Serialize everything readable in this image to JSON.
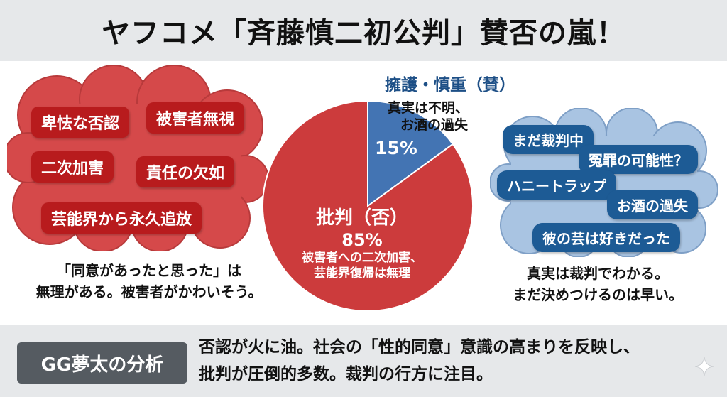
{
  "header": {
    "title": "ヤフコメ「斉藤慎二初公判」賛否の嵐！"
  },
  "oppose": {
    "tags": [
      "卑怯な否認",
      "被害者無視",
      "二次加害",
      "責任の欠如",
      "芸能界から永久追放"
    ],
    "quote": [
      "「同意があったと思った」は",
      "無理がある。被害者がかわいそう。"
    ],
    "colors": {
      "cloud": "#d5494a",
      "cloud_edge": "#b83a3b",
      "chip": "#b81b1d"
    }
  },
  "support": {
    "tags": [
      "まだ裁判中",
      "冤罪の可能性？",
      "ハニートラップ",
      "お酒の過失",
      "彼の芸は好きだった"
    ],
    "quote": [
      "真実は裁判でわかる。",
      "まだ決めつけるのは早い。"
    ],
    "colors": {
      "cloud": "#a9c4e2",
      "cloud_edge": "#7e9fc6",
      "chip": "#1d5b95"
    }
  },
  "chart_data": {
    "type": "pie",
    "slices": [
      {
        "label": "批判（否）",
        "value": 85,
        "percent_label": "85%",
        "description": [
          "被害者への二次加害、",
          "芸能界復帰は無理"
        ],
        "color": "#cc3b3c"
      },
      {
        "label": "擁護・慎重（賛）",
        "value": 15,
        "percent_label": "15%",
        "description": [
          "真実は不明、",
          "お酒の過失"
        ],
        "color": "#4374b3"
      }
    ]
  },
  "footer": {
    "badge": "GG夢太の分析",
    "text": [
      "否認が火に油。社会の「性的同意」意識の高まりを反映し、",
      "批判が圧倒的多数。裁判の行方に注目。"
    ]
  }
}
